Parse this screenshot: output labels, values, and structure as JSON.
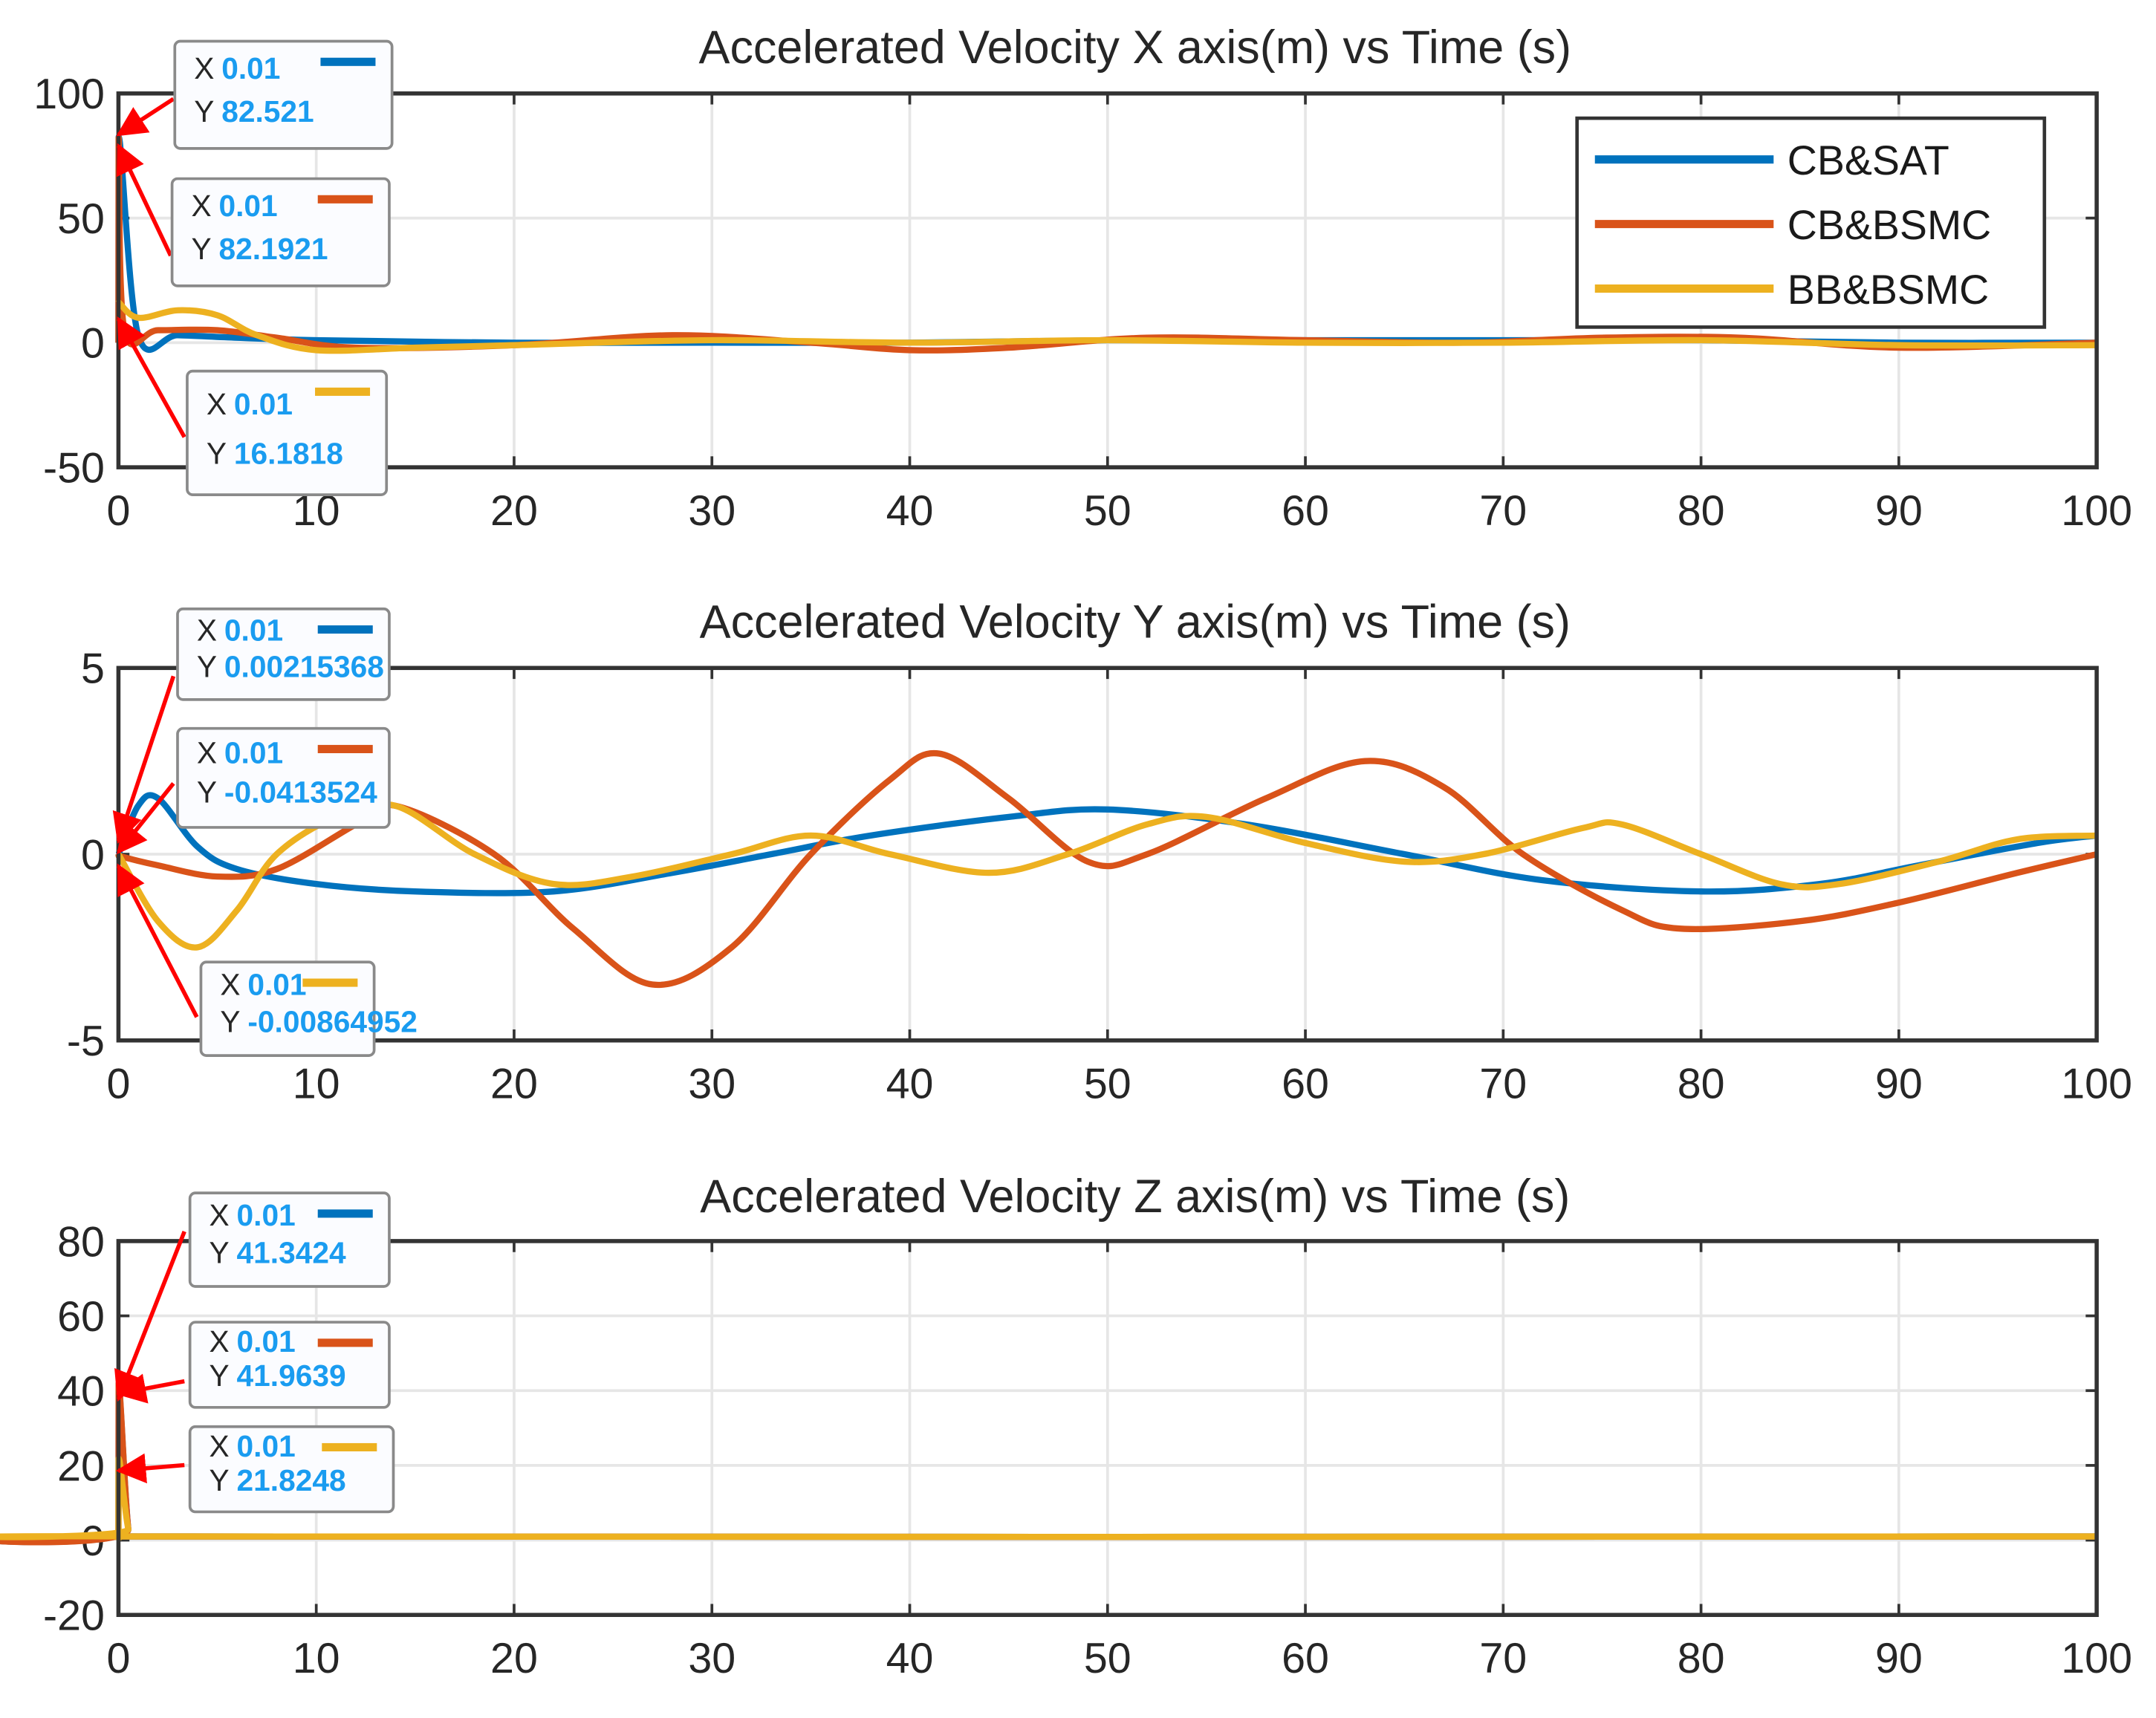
{
  "colors": {
    "CB&SAT": "#0072bd",
    "CB&BSMC": "#d95319",
    "BB&BSMC": "#edb120",
    "arrow": "#ff0000"
  },
  "chart_data": [
    {
      "type": "line",
      "title": "Accelerated Velocity X axis(m) vs Time (s)",
      "xlabel": "",
      "ylabel": "",
      "xlim": [
        0,
        100
      ],
      "ylim": [
        -50,
        100
      ],
      "xticks": [
        "0",
        "10",
        "20",
        "30",
        "40",
        "50",
        "60",
        "70",
        "80",
        "90",
        "100"
      ],
      "yticks": [
        "-50",
        "0",
        "50",
        "100"
      ],
      "grid": true,
      "legend": {
        "placement": "top-right",
        "entries": [
          "CB&SAT",
          "CB&BSMC",
          "BB&BSMC"
        ]
      },
      "series": [
        {
          "name": "CB&SAT",
          "x": [
            0,
            0.01,
            1,
            3,
            6,
            10,
            20,
            30,
            40,
            50,
            60,
            70,
            80,
            90,
            100
          ],
          "y": [
            0,
            82.521,
            3,
            3,
            2,
            1,
            0,
            0,
            0,
            1,
            1,
            1,
            1,
            0,
            0
          ]
        },
        {
          "name": "CB&BSMC",
          "x": [
            0,
            0.01,
            0.3,
            2,
            5,
            8,
            12,
            20,
            28,
            35,
            40,
            45,
            52,
            60,
            68,
            75,
            82,
            90,
            100
          ],
          "y": [
            0,
            82.1921,
            5,
            5,
            5,
            2,
            -2,
            -1,
            3,
            0,
            -3,
            -2,
            2,
            1,
            0,
            2,
            2,
            -2,
            0
          ]
        },
        {
          "name": "BB&BSMC",
          "x": [
            0,
            0.01,
            1,
            3,
            5,
            7,
            10,
            15,
            20,
            30,
            40,
            50,
            60,
            70,
            80,
            90,
            100
          ],
          "y": [
            16,
            16.1818,
            10,
            13,
            11,
            3,
            -3,
            -2,
            -1,
            1,
            0,
            1,
            0,
            0,
            1,
            -1,
            -1
          ]
        }
      ],
      "datatips": [
        {
          "series": "CB&SAT",
          "x_label": "X",
          "x": "0.01",
          "y_label": "Y",
          "y": "82.521"
        },
        {
          "series": "CB&BSMC",
          "x_label": "X",
          "x": "0.01",
          "y_label": "Y",
          "y": "82.1921"
        },
        {
          "series": "BB&BSMC",
          "x_label": "X",
          "x": "0.01",
          "y_label": "Y",
          "y": "16.1818"
        }
      ]
    },
    {
      "type": "line",
      "title": "Accelerated Velocity Y axis(m) vs Time (s)",
      "xlabel": "",
      "ylabel": "",
      "xlim": [
        0,
        100
      ],
      "ylim": [
        -5,
        5
      ],
      "xticks": [
        "0",
        "10",
        "20",
        "30",
        "40",
        "50",
        "60",
        "70",
        "80",
        "90",
        "100"
      ],
      "yticks": [
        "-5",
        "0",
        "5"
      ],
      "grid": true,
      "series": [
        {
          "name": "CB&SAT",
          "x": [
            0,
            0.01,
            1,
            2,
            4,
            6,
            10,
            15,
            22,
            28,
            33,
            38,
            45,
            50,
            57,
            65,
            72,
            80,
            86,
            91,
            97,
            100
          ],
          "y": [
            0,
            0.00215368,
            1.3,
            1.5,
            0.2,
            -0.4,
            -0.8,
            -1,
            -1,
            -0.5,
            0,
            0.5,
            1,
            1.2,
            0.8,
            0,
            -0.7,
            -1,
            -0.8,
            -0.3,
            0.3,
            0.5
          ]
        },
        {
          "name": "CB&BSMC",
          "x": [
            0,
            0.01,
            2,
            5,
            8,
            12,
            14,
            19,
            23,
            27,
            31,
            35,
            39,
            41.5,
            45,
            49,
            52,
            58,
            63,
            67,
            71,
            76,
            79,
            85,
            90,
            96,
            100
          ],
          "y": [
            0,
            -0.0413524,
            -0.3,
            -0.6,
            -0.4,
            0.8,
            1.3,
            0,
            -2,
            -3.5,
            -2.5,
            0,
            2,
            2.7,
            1.5,
            -0.2,
            0,
            1.5,
            2.5,
            1.8,
            0,
            -1.5,
            -2,
            -1.8,
            -1.3,
            -0.5,
            0
          ]
        },
        {
          "name": "BB&BSMC",
          "x": [
            0,
            0.01,
            2,
            4,
            6,
            8,
            11,
            14,
            18,
            22,
            26,
            31,
            35,
            39,
            44,
            48,
            52,
            55,
            60,
            65,
            69,
            74,
            76,
            80,
            84,
            87,
            92,
            96,
            100
          ],
          "y": [
            0,
            -0.00864952,
            -1.8,
            -2.5,
            -1.5,
            0,
            1,
            1.3,
            0,
            -0.8,
            -0.6,
            0,
            0.5,
            0,
            -0.5,
            0,
            0.8,
            1,
            0.3,
            -0.2,
            0,
            0.7,
            0.8,
            0,
            -0.8,
            -0.8,
            -0.2,
            0.4,
            0.5
          ]
        }
      ],
      "datatips": [
        {
          "series": "CB&SAT",
          "x_label": "X",
          "x": "0.01",
          "y_label": "Y",
          "y": "0.00215368"
        },
        {
          "series": "CB&BSMC",
          "x_label": "X",
          "x": "0.01",
          "y_label": "Y",
          "y": "-0.0413524"
        },
        {
          "series": "BB&BSMC",
          "x_label": "X",
          "x": "0.01",
          "y_label": "Y",
          "y": "-0.00864952"
        }
      ]
    },
    {
      "type": "line",
      "title": "Accelerated Velocity Z axis(m) vs Time (s)",
      "xlabel": "",
      "ylabel": "",
      "xlim": [
        0,
        100
      ],
      "ylim": [
        -20,
        80
      ],
      "xticks": [
        "0",
        "10",
        "20",
        "30",
        "40",
        "50",
        "60",
        "70",
        "80",
        "90",
        "100"
      ],
      "yticks": [
        "-20",
        "0",
        "20",
        "40",
        "60",
        "80"
      ],
      "grid": true,
      "series": [
        {
          "name": "CB&SAT",
          "x": [
            0,
            0.01,
            0.5,
            1,
            100
          ],
          "y": [
            0,
            41.3424,
            3,
            1,
            1
          ]
        },
        {
          "name": "CB&BSMC",
          "x": [
            0,
            0.01,
            0.5,
            1,
            100
          ],
          "y": [
            0,
            41.9639,
            3,
            1,
            1
          ]
        },
        {
          "name": "BB&BSMC",
          "x": [
            0,
            0.01,
            0.5,
            1,
            100
          ],
          "y": [
            0,
            21.8248,
            3,
            1,
            1
          ]
        }
      ],
      "datatips": [
        {
          "series": "CB&SAT",
          "x_label": "X",
          "x": "0.01",
          "y_label": "Y",
          "y": "41.3424"
        },
        {
          "series": "CB&BSMC",
          "x_label": "X",
          "x": "0.01",
          "y_label": "Y",
          "y": "41.9639"
        },
        {
          "series": "BB&BSMC",
          "x_label": "X",
          "x": "0.01",
          "y_label": "Y",
          "y": "21.8248"
        }
      ]
    }
  ]
}
